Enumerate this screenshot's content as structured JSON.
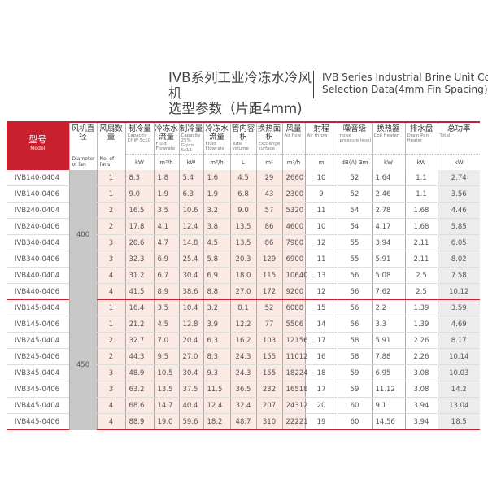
{
  "title": {
    "zh_line1": "IVB系列工业冷冻水冷风机",
    "zh_line2": "选型参数（片距4mm)",
    "en_line1": "IVB Series Industrial Brine  Unit Cooler",
    "en_line2": "Selection Data(4mm Fin Spacing)"
  },
  "columns": [
    {
      "zh": "型号",
      "en": "Model",
      "unit": ""
    },
    {
      "zh": "风机直径",
      "en": "Diameter of fan",
      "unit": ""
    },
    {
      "zh": "风扇数量",
      "en": "No. of fans",
      "unit": ""
    },
    {
      "zh": "制冷量",
      "en": "Capacity CHW Sc10",
      "unit": "kW"
    },
    {
      "zh": "冷冻水流量",
      "en": "Fluid Flowrate",
      "unit": "m³/h"
    },
    {
      "zh": "制冷量",
      "en": "Capacity 25% Glycol Sc11",
      "unit": "kW"
    },
    {
      "zh": "冷冻水流量",
      "en": "Fluid Flowrate",
      "unit": "m³/h"
    },
    {
      "zh": "管内容积",
      "en": "Tube volume",
      "unit": "L"
    },
    {
      "zh": "换热面积",
      "en": "Exchange surface",
      "unit": "m²"
    },
    {
      "zh": "风量",
      "en": "Air flow",
      "unit": "m³/h"
    },
    {
      "zh": "射程",
      "en": "Air throw",
      "unit": "m"
    },
    {
      "zh": "噪音级",
      "en": "noise pressure level",
      "unit": "dB(A) 3m"
    },
    {
      "zh": "换热器",
      "en": "Coil Heater",
      "unit": "kW"
    },
    {
      "zh": "排水盘",
      "en": "Drain Pan Heater",
      "unit": "kW"
    },
    {
      "zh": "总功率",
      "en": "Total",
      "unit": "kW"
    }
  ],
  "groups": [
    {
      "diameter": "400",
      "rows": [
        [
          "IVB140-0404",
          "1",
          "8.3",
          "1.8",
          "5.4",
          "1.6",
          "4.5",
          "29",
          "2660",
          "10",
          "52",
          "1.64",
          "1.1",
          "2.74"
        ],
        [
          "IVB140-0406",
          "1",
          "9.0",
          "1.9",
          "6.3",
          "1.9",
          "6.8",
          "43",
          "2300",
          "9",
          "52",
          "2.46",
          "1.1",
          "3.56"
        ],
        [
          "IVB240-0404",
          "2",
          "16.5",
          "3.5",
          "10.6",
          "3.2",
          "9.0",
          "57",
          "5320",
          "11",
          "54",
          "2.78",
          "1.68",
          "4.46"
        ],
        [
          "IVB240-0406",
          "2",
          "17.8",
          "4.1",
          "12.4",
          "3.8",
          "13.5",
          "86",
          "4600",
          "10",
          "54",
          "4.17",
          "1.68",
          "5.85"
        ],
        [
          "IVB340-0404",
          "3",
          "20.6",
          "4.7",
          "14.8",
          "4.5",
          "13.5",
          "86",
          "7980",
          "12",
          "55",
          "3.94",
          "2.11",
          "6.05"
        ],
        [
          "IVB340-0406",
          "3",
          "32.3",
          "6.9",
          "25.4",
          "5.8",
          "20.3",
          "129",
          "6900",
          "11",
          "55",
          "5.91",
          "2.11",
          "8.02"
        ],
        [
          "IVB440-0404",
          "4",
          "31.2",
          "6.7",
          "30.4",
          "6.9",
          "18.0",
          "115",
          "10640",
          "13",
          "56",
          "5.08",
          "2.5",
          "7.58"
        ],
        [
          "IVB440-0406",
          "4",
          "41.5",
          "8.9",
          "38.6",
          "8.8",
          "27.0",
          "172",
          "9200",
          "12",
          "56",
          "7.62",
          "2.5",
          "10.12"
        ]
      ]
    },
    {
      "diameter": "450",
      "rows": [
        [
          "IVB145-0404",
          "1",
          "16.4",
          "3.5",
          "10.4",
          "3.2",
          "8.1",
          "52",
          "6088",
          "15",
          "56",
          "2.2",
          "1.39",
          "3.59"
        ],
        [
          "IVB145-0406",
          "1",
          "21.2",
          "4.5",
          "12.8",
          "3.9",
          "12.2",
          "77",
          "5506",
          "14",
          "56",
          "3.3",
          "1.39",
          "4.69"
        ],
        [
          "IVB245-0404",
          "2",
          "32.7",
          "7.0",
          "20.4",
          "6.3",
          "16.2",
          "103",
          "12156",
          "17",
          "58",
          "5.91",
          "2.26",
          "8.17"
        ],
        [
          "IVB245-0406",
          "2",
          "44.3",
          "9.5",
          "27.0",
          "8.3",
          "24.3",
          "155",
          "11012",
          "16",
          "58",
          "7.88",
          "2.26",
          "10.14"
        ],
        [
          "IVB345-0404",
          "3",
          "48.9",
          "10.5",
          "30.4",
          "9.3",
          "24.3",
          "155",
          "18224",
          "18",
          "59",
          "6.95",
          "3.08",
          "10.03"
        ],
        [
          "IVB345-0406",
          "3",
          "63.2",
          "13.5",
          "37.5",
          "11.5",
          "36.5",
          "232",
          "16518",
          "17",
          "59",
          "11.12",
          "3.08",
          "14.2"
        ],
        [
          "IVB445-0404",
          "4",
          "68.6",
          "14.7",
          "40.4",
          "12.4",
          "32.4",
          "207",
          "24312",
          "20",
          "60",
          "9.1",
          "3.94",
          "13.04"
        ],
        [
          "IVB445-0406",
          "4",
          "88.9",
          "19.0",
          "59.6",
          "18.2",
          "48.7",
          "310",
          "22221",
          "19",
          "60",
          "14.56",
          "3.94",
          "18.5"
        ]
      ]
    }
  ],
  "colors": {
    "accent": "#c8202f",
    "pink_fill": "#fbe9e3",
    "gray_fill": "#c8c8c8",
    "total_fill": "#ececec"
  }
}
